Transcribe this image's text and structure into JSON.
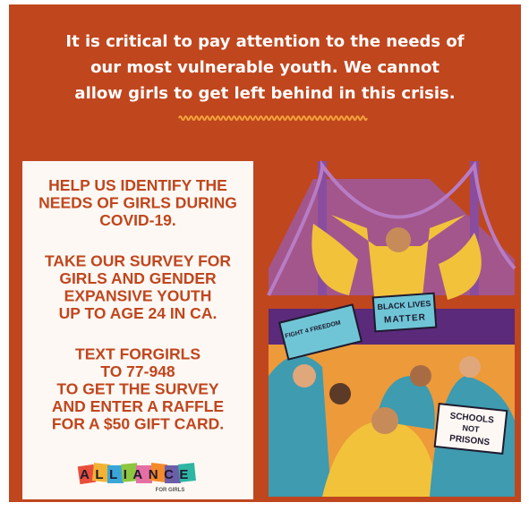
{
  "message": {
    "lines": [
      "It is critical to pay attention to the needs of",
      "our most vulnerable youth. We cannot",
      "allow girls to get left behind in this crisis."
    ]
  },
  "card": {
    "paragraphs": [
      [
        "HELP US IDENTIFY THE",
        "NEEDS OF GIRLS DURING",
        "COVID-19."
      ],
      [
        "TAKE OUR SURVEY FOR",
        "GIRLS AND GENDER",
        "EXPANSIVE YOUTH",
        "UP TO AGE 24 IN CA."
      ],
      [
        "TEXT FORGIRLS",
        "TO 77-948",
        "TO GET THE SURVEY",
        "AND ENTER A RAFFLE",
        "FOR A $50 GIFT CARD."
      ]
    ]
  },
  "logo": {
    "name": "ALLIANCE",
    "tagline": "FOR GIRLS"
  },
  "illustration": {
    "signs": [
      "FIGHT 4 FREEDOM",
      "BLACK LIVES",
      "MATTER",
      "SCHOOLS",
      "NOT",
      "PRISONS"
    ]
  }
}
